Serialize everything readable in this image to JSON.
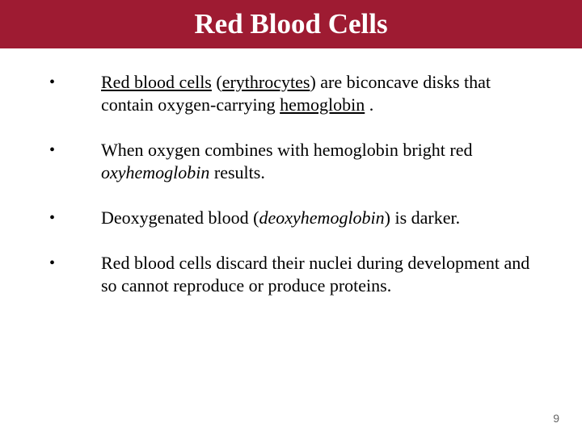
{
  "title_bar": {
    "background_color": "#9e1b32",
    "text": "Red Blood Cells",
    "text_color": "#ffffff",
    "font_size": 35,
    "font_weight": "bold"
  },
  "bullets": {
    "symbol": "•",
    "font_size": 22,
    "line_height": 28,
    "items": [
      {
        "runs": [
          {
            "t": "Red blood cells",
            "u": true
          },
          {
            "t": " ("
          },
          {
            "t": "erythrocytes",
            "u": true
          },
          {
            "t": ") are biconcave disks that contain oxygen-carrying "
          },
          {
            "t": "hemoglobin",
            "u": true
          },
          {
            "t": " ."
          }
        ]
      },
      {
        "runs": [
          {
            "t": "When oxygen combines with hemoglobin bright red "
          },
          {
            "t": "oxyhemoglobin",
            "i": true
          },
          {
            "t": " results."
          }
        ]
      },
      {
        "runs": [
          {
            "t": " Deoxygenated blood ("
          },
          {
            "t": "deoxyhemoglobin",
            "i": true
          },
          {
            "t": ") is darker."
          }
        ]
      },
      {
        "runs": [
          {
            "t": " Red blood cells discard their nuclei during development and so cannot reproduce or produce proteins."
          }
        ]
      }
    ]
  },
  "page_number": "9",
  "background_color": "#ffffff"
}
